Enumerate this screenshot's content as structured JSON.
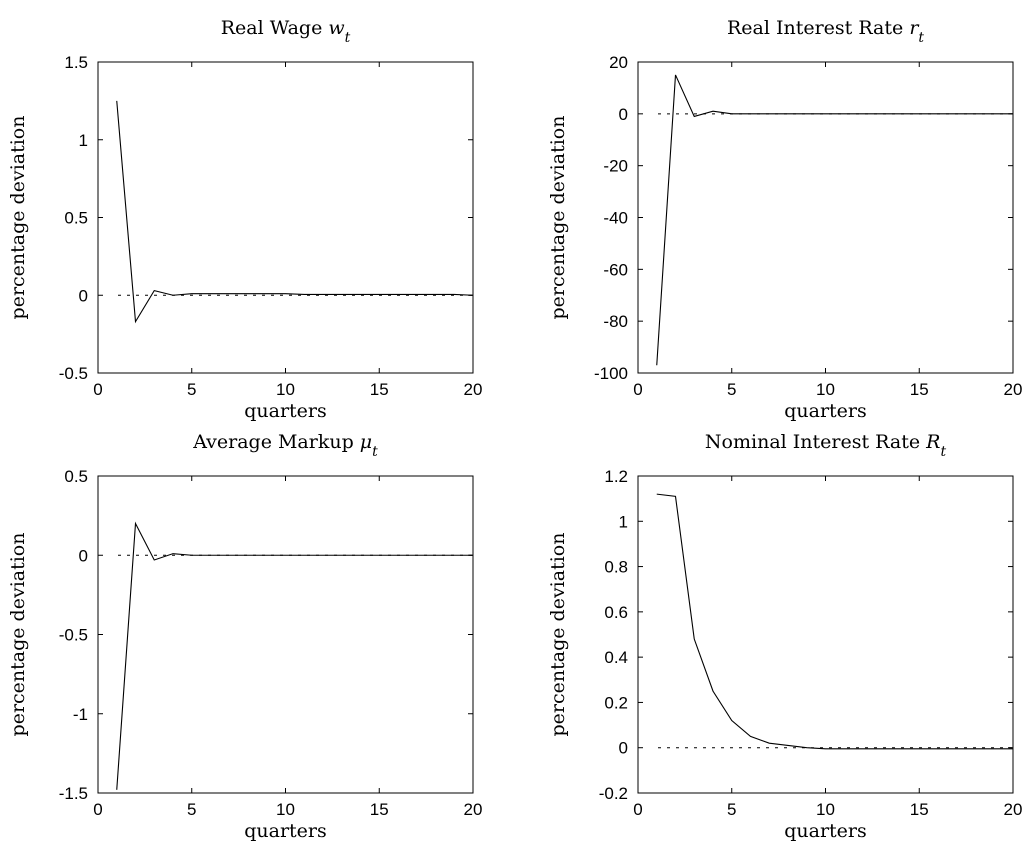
{
  "chart_data": [
    {
      "type": "line",
      "title": {
        "text": "Real Wage ",
        "var": "w",
        "sub": "t"
      },
      "xlabel": "quarters",
      "ylabel": "percentage deviation",
      "xlim": [
        0,
        20
      ],
      "ylim": [
        -0.5,
        1.5
      ],
      "xticks": [
        0,
        5,
        10,
        15,
        20
      ],
      "xtick_labels": [
        "0",
        "5",
        "10",
        "15",
        "20"
      ],
      "yticks": [
        -0.5,
        0,
        0.5,
        1,
        1.5
      ],
      "ytick_labels": [
        "-0.5",
        "0",
        "0.5",
        "1",
        "1.5"
      ],
      "zero_line": true,
      "x": [
        1,
        2,
        3,
        4,
        5,
        6,
        7,
        8,
        9,
        10,
        11,
        12,
        13,
        14,
        15,
        16,
        17,
        18,
        19,
        20
      ],
      "y": [
        1.25,
        -0.17,
        0.03,
        0.0,
        0.01,
        0.01,
        0.01,
        0.01,
        0.01,
        0.01,
        0.005,
        0.005,
        0.005,
        0.005,
        0.005,
        0.005,
        0.005,
        0.005,
        0.005,
        0.0
      ]
    },
    {
      "type": "line",
      "title": {
        "text": "Real Interest Rate ",
        "var": "r",
        "sub": "t"
      },
      "xlabel": "quarters",
      "ylabel": "percentage deviation",
      "xlim": [
        0,
        20
      ],
      "ylim": [
        -100,
        20
      ],
      "xticks": [
        0,
        5,
        10,
        15,
        20
      ],
      "xtick_labels": [
        "0",
        "5",
        "10",
        "15",
        "20"
      ],
      "yticks": [
        -100,
        -80,
        -60,
        -40,
        -20,
        0,
        20
      ],
      "ytick_labels": [
        "-100",
        "-80",
        "-60",
        "-40",
        "-20",
        "0",
        "20"
      ],
      "zero_line": true,
      "x": [
        1,
        2,
        3,
        4,
        5,
        6,
        7,
        8,
        9,
        10,
        11,
        12,
        13,
        14,
        15,
        16,
        17,
        18,
        19,
        20
      ],
      "y": [
        -97,
        15,
        -1,
        1,
        0,
        0,
        0,
        0,
        0,
        0,
        0,
        0,
        0,
        0,
        0,
        0,
        0,
        0,
        0,
        0
      ]
    },
    {
      "type": "line",
      "title": {
        "text": "Average Markup ",
        "var": "μ",
        "sub": "t"
      },
      "xlabel": "quarters",
      "ylabel": "percentage deviation",
      "xlim": [
        0,
        20
      ],
      "ylim": [
        -1.5,
        0.5
      ],
      "xticks": [
        0,
        5,
        10,
        15,
        20
      ],
      "xtick_labels": [
        "0",
        "5",
        "10",
        "15",
        "20"
      ],
      "yticks": [
        -1.5,
        -1,
        -0.5,
        0,
        0.5
      ],
      "ytick_labels": [
        "-1.5",
        "-1",
        "-0.5",
        "0",
        "0.5"
      ],
      "zero_line": true,
      "x": [
        1,
        2,
        3,
        4,
        5,
        6,
        7,
        8,
        9,
        10,
        11,
        12,
        13,
        14,
        15,
        16,
        17,
        18,
        19,
        20
      ],
      "y": [
        -1.48,
        0.2,
        -0.03,
        0.01,
        0.0,
        0.0,
        0.0,
        0.0,
        0.0,
        0.0,
        0.0,
        0.0,
        0.0,
        0.0,
        0.0,
        0.0,
        0.0,
        0.0,
        0.0,
        0.0
      ]
    },
    {
      "type": "line",
      "title": {
        "text": "Nominal Interest Rate ",
        "var": "R",
        "sub": "t"
      },
      "xlabel": "quarters",
      "ylabel": "percentage deviation",
      "xlim": [
        0,
        20
      ],
      "ylim": [
        -0.2,
        1.2
      ],
      "xticks": [
        0,
        5,
        10,
        15,
        20
      ],
      "xtick_labels": [
        "0",
        "5",
        "10",
        "15",
        "20"
      ],
      "yticks": [
        -0.2,
        0,
        0.2,
        0.4,
        0.6,
        0.8,
        1,
        1.2
      ],
      "ytick_labels": [
        "-0.2",
        "0",
        "0.2",
        "0.4",
        "0.6",
        "0.8",
        "1",
        "1.2"
      ],
      "zero_line": true,
      "x": [
        1,
        2,
        3,
        4,
        5,
        6,
        7,
        8,
        9,
        10,
        11,
        12,
        13,
        14,
        15,
        16,
        17,
        18,
        19,
        20
      ],
      "y": [
        1.12,
        1.11,
        0.48,
        0.25,
        0.12,
        0.05,
        0.02,
        0.01,
        0.0,
        -0.005,
        -0.005,
        -0.005,
        -0.005,
        -0.005,
        -0.005,
        -0.005,
        -0.005,
        -0.005,
        -0.005,
        -0.005
      ]
    }
  ]
}
